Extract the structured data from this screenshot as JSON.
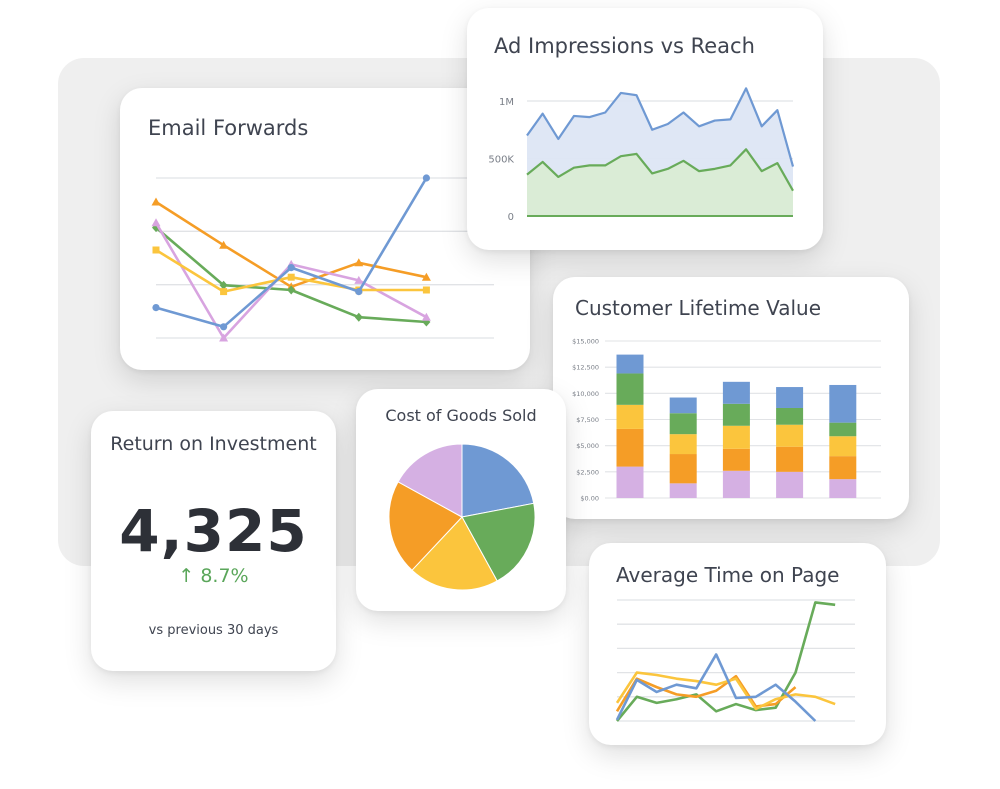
{
  "colors": {
    "blue": "#6f99d3",
    "green": "#68ab5a",
    "orange": "#f59d26",
    "yellow": "#fbc53d",
    "lavender": "#d5b0e3",
    "pink": "#d8a4e0",
    "grid": "#e1e3e6"
  },
  "chart_data": [
    {
      "id": "email_forwards",
      "type": "line",
      "title": "Email Forwards",
      "x": [
        1,
        2,
        3,
        4,
        5,
        6
      ],
      "ylim": [
        0,
        100
      ],
      "grid": true,
      "series": [
        {
          "color": "orange",
          "marker": "triangle",
          "values": [
            85,
            58,
            32,
            47,
            38,
            null
          ]
        },
        {
          "color": "green",
          "marker": "diamond",
          "values": [
            69,
            33,
            30,
            13,
            10,
            null
          ]
        },
        {
          "color": "pink",
          "marker": "triangle",
          "values": [
            72,
            0,
            46,
            36,
            13,
            null
          ]
        },
        {
          "color": "yellow",
          "marker": "square",
          "values": [
            55,
            29,
            38,
            30,
            30,
            null
          ]
        },
        {
          "color": "blue",
          "marker": "circle",
          "values": [
            19,
            7,
            44,
            29,
            100,
            null
          ]
        }
      ]
    },
    {
      "id": "ad_impressions_reach",
      "type": "area",
      "title": "Ad Impressions vs Reach",
      "y_ticks": [
        "1M",
        "500K",
        "0"
      ],
      "ylim": [
        0,
        1000000
      ],
      "grid": true,
      "series": [
        {
          "color": "blue",
          "values": [
            700000,
            890000,
            670000,
            870000,
            860000,
            900000,
            1070000,
            1050000,
            750000,
            800000,
            900000,
            780000,
            830000,
            840000,
            1110000,
            780000,
            920000,
            430000
          ]
        },
        {
          "color": "green",
          "values": [
            360000,
            470000,
            340000,
            420000,
            440000,
            440000,
            520000,
            540000,
            370000,
            410000,
            480000,
            390000,
            410000,
            440000,
            580000,
            390000,
            460000,
            220000
          ]
        }
      ]
    },
    {
      "id": "customer_lifetime_value",
      "type": "bar",
      "stacked": true,
      "title": "Customer Lifetime Value",
      "y_ticks": [
        "$15,000",
        "$12,500",
        "$10,000",
        "$7,500",
        "$5,000",
        "$2,500",
        "$0.00"
      ],
      "ylim": [
        0,
        15000
      ],
      "grid": true,
      "series": [
        {
          "color": "lavender",
          "values": [
            3000,
            1400,
            2600,
            2500,
            1800
          ]
        },
        {
          "color": "orange",
          "values": [
            3600,
            2800,
            2100,
            2400,
            2200
          ]
        },
        {
          "color": "yellow",
          "values": [
            2300,
            1900,
            2200,
            2100,
            1900
          ]
        },
        {
          "color": "green",
          "values": [
            3000,
            2000,
            2100,
            1600,
            1300
          ]
        },
        {
          "color": "blue",
          "values": [
            1800,
            1500,
            2100,
            2000,
            3600
          ]
        }
      ]
    },
    {
      "id": "cost_of_goods_sold",
      "type": "pie",
      "title": "Cost of Goods Sold",
      "slices": [
        {
          "color": "blue",
          "value": 22
        },
        {
          "color": "green",
          "value": 20
        },
        {
          "color": "yellow",
          "value": 20
        },
        {
          "color": "orange",
          "value": 21
        },
        {
          "color": "lavender",
          "value": 17
        }
      ]
    },
    {
      "id": "average_time_on_page",
      "type": "line",
      "title": "Average Time on Page",
      "x": [
        1,
        2,
        3,
        4,
        5,
        6,
        7,
        8,
        9,
        10,
        11,
        12,
        13
      ],
      "ylim": [
        0,
        100
      ],
      "grid": true,
      "series": [
        {
          "color": "green",
          "values": [
            0,
            20,
            15,
            18,
            22,
            8,
            14,
            9,
            11,
            40,
            98,
            96,
            null
          ]
        },
        {
          "color": "orange",
          "values": [
            8,
            35,
            28,
            22,
            20,
            25,
            37,
            12,
            14,
            28,
            null,
            null,
            null
          ]
        },
        {
          "color": "yellow",
          "values": [
            15,
            40,
            38,
            35,
            33,
            30,
            35,
            10,
            18,
            22,
            20,
            14,
            null
          ]
        },
        {
          "color": "blue",
          "values": [
            1,
            34,
            24,
            30,
            27,
            55,
            19,
            20,
            30,
            16,
            0,
            null,
            null
          ]
        }
      ]
    }
  ],
  "roi": {
    "title": "Return on Investment",
    "value": "4,325",
    "change": "↑ 8.7%",
    "caption": "vs previous 30 days"
  }
}
